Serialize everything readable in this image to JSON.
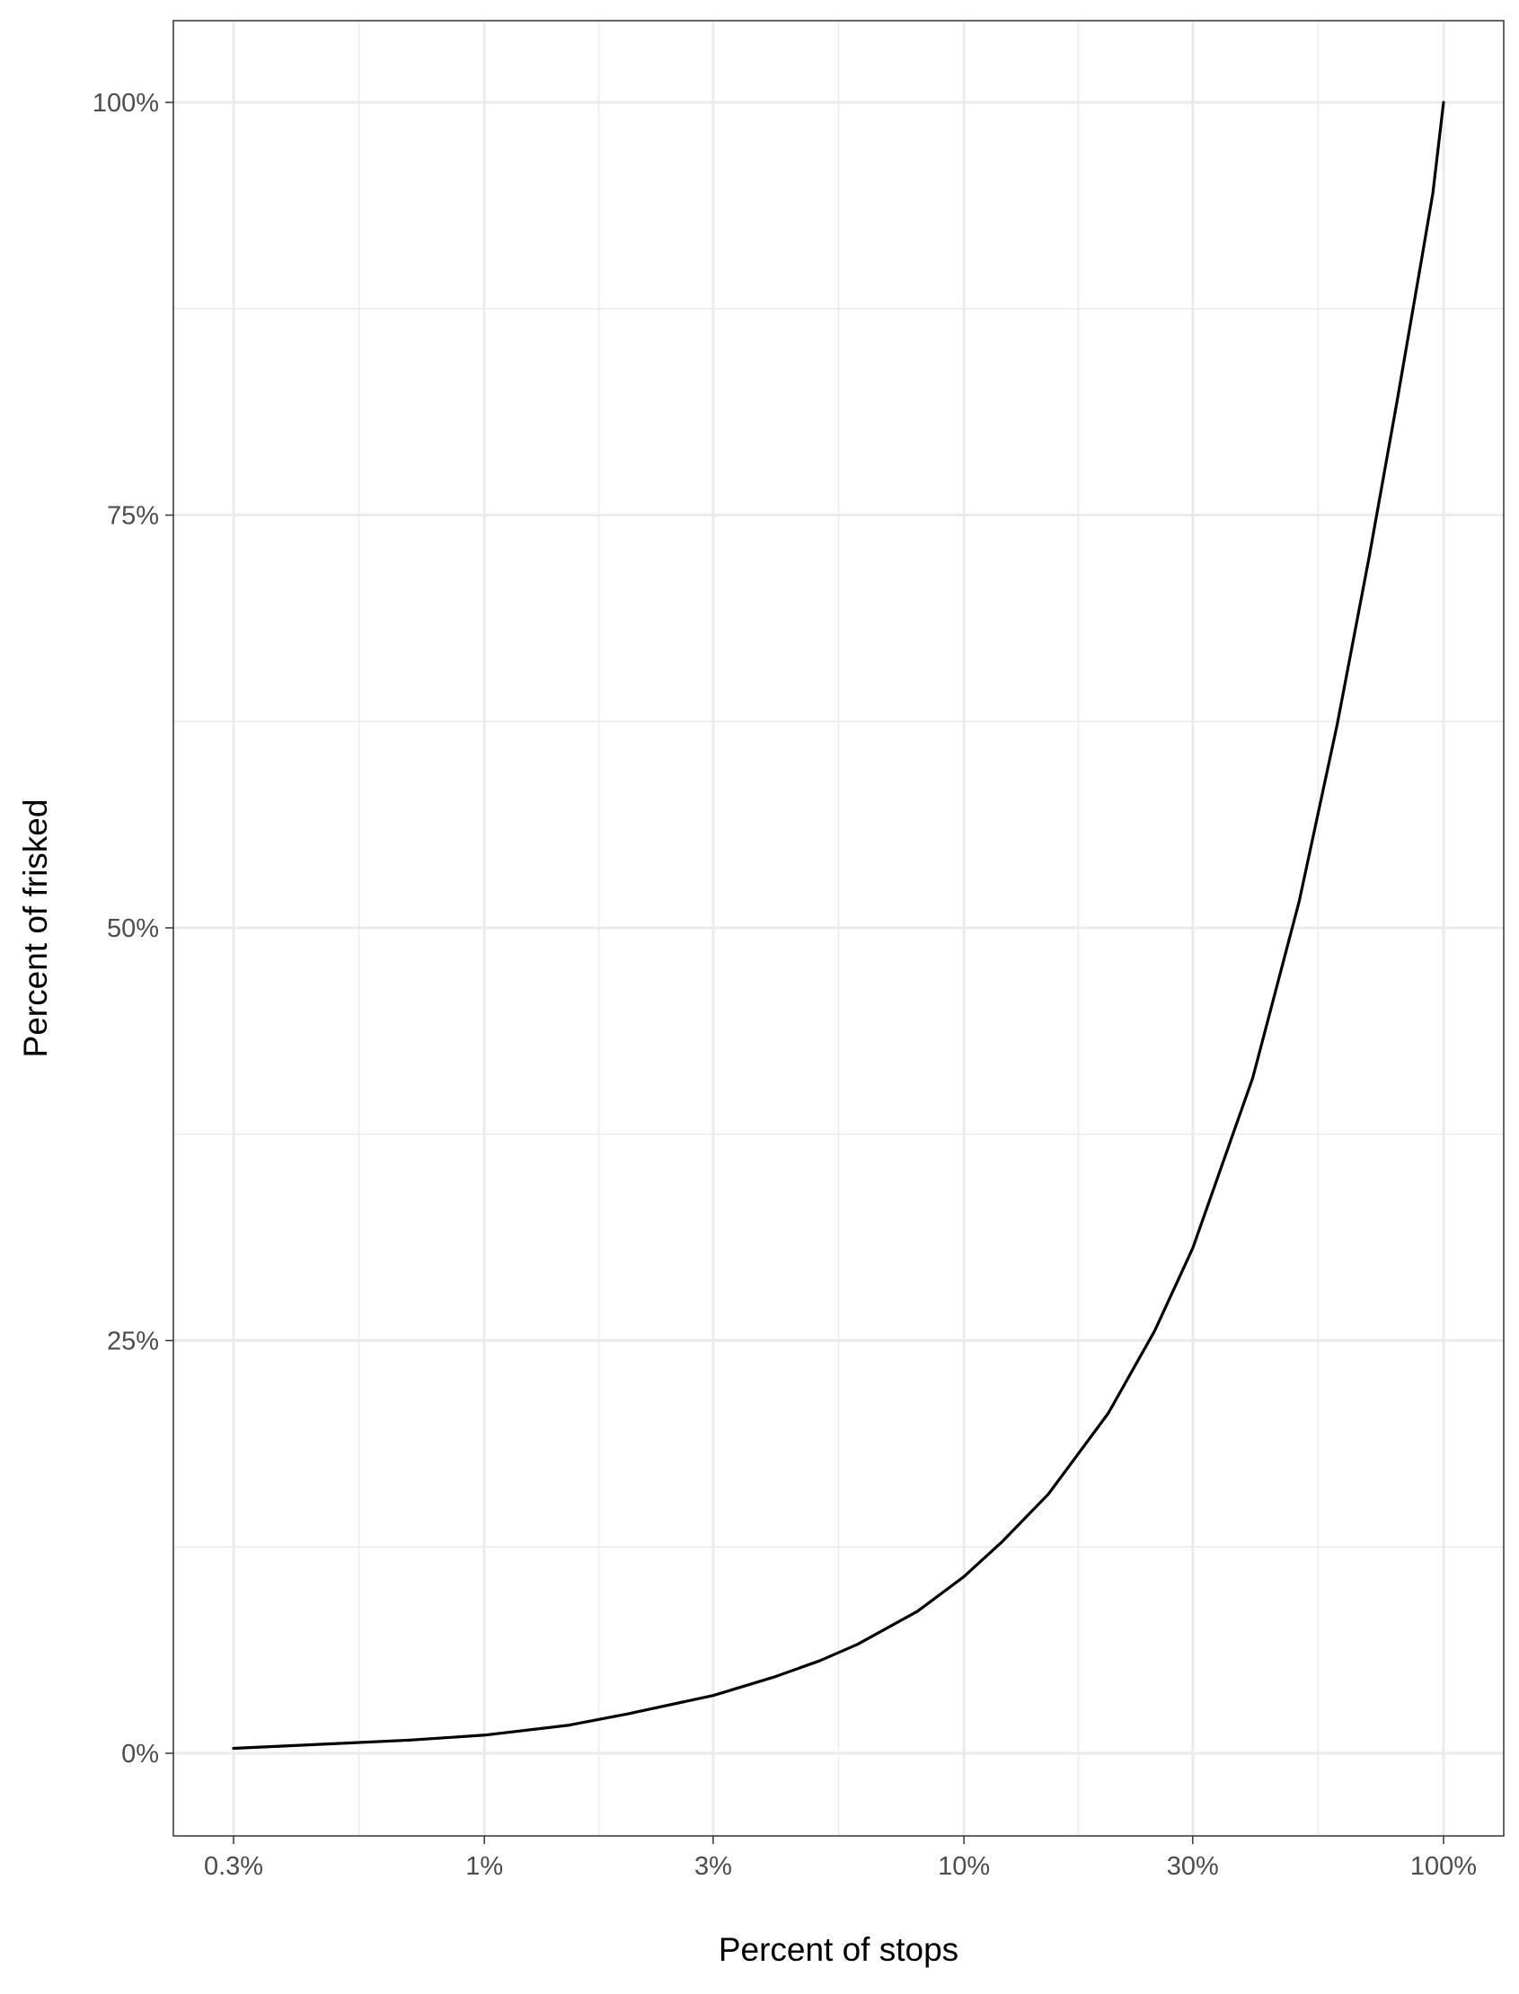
{
  "chart_data": {
    "type": "line",
    "title": "",
    "xlabel": "Percent of stops",
    "ylabel": "Percent of frisked",
    "x_scale": "log10",
    "xlim": [
      0.3,
      100
    ],
    "ylim": [
      0,
      100
    ],
    "x_ticks": [
      {
        "value": 0.3,
        "label": "0.3%"
      },
      {
        "value": 1,
        "label": "1%"
      },
      {
        "value": 3,
        "label": "3%"
      },
      {
        "value": 10,
        "label": "10%"
      },
      {
        "value": 30,
        "label": "30%"
      },
      {
        "value": 100,
        "label": "100%"
      }
    ],
    "y_ticks": [
      {
        "value": 0,
        "label": "0%"
      },
      {
        "value": 25,
        "label": "25%"
      },
      {
        "value": 50,
        "label": "50%"
      },
      {
        "value": 75,
        "label": "75%"
      },
      {
        "value": 100,
        "label": "100%"
      }
    ],
    "grid": true,
    "legend": "none",
    "series": [
      {
        "color": "#000000",
        "x": [
          0.3,
          0.5,
          0.7,
          1,
          1.5,
          2,
          3,
          4,
          5,
          6,
          8,
          10,
          12,
          15,
          20,
          25,
          30,
          40,
          50,
          60,
          70,
          80,
          90,
          95,
          100
        ],
        "y": [
          0.3,
          0.6,
          0.8,
          1.1,
          1.7,
          2.4,
          3.5,
          4.6,
          5.6,
          6.6,
          8.6,
          10.7,
          12.8,
          15.7,
          20.6,
          25.6,
          30.6,
          40.9,
          51.6,
          62.3,
          72.5,
          81.9,
          90.5,
          94.5,
          100
        ]
      }
    ]
  }
}
